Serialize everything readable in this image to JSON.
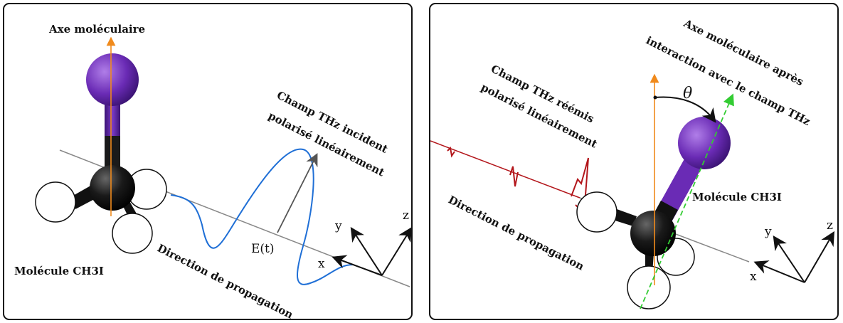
{
  "left": {
    "axis_label": "Axe moléculaire",
    "incident_field_label": [
      "Champ THz incident",
      "polarisé linéairement"
    ],
    "field_symbol": "E(t)",
    "propagation_label": "Direction de propagation",
    "molecule_label": "Molécule CH3I",
    "axes": {
      "x": "x",
      "y": "y",
      "z": "z"
    }
  },
  "right": {
    "axis_after_label": [
      "Axe moléculaire après",
      "interaction avec le champ THz"
    ],
    "reemitted_label": [
      "Champ THz réémis",
      "polarisé linéairement"
    ],
    "angle_symbol": "θ",
    "molecule_label": "Molécule CH3I",
    "propagation_label": "Direction de propagation",
    "axes": {
      "x": "x",
      "y": "y",
      "z": "z"
    }
  },
  "colors": {
    "iodine": "#6a2bb5",
    "carbon": "#111111",
    "hydrogen": "#ffffff",
    "molecular_axis": "#f08a1c",
    "incident_field": "#1f6fd6",
    "reemitted_field": "#b3161b",
    "rotated_axis": "#33cc33",
    "propagation_line": "#888888"
  }
}
